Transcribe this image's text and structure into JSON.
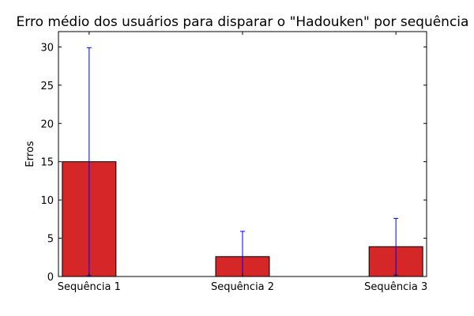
{
  "chart_data": {
    "type": "bar",
    "title": "Erro médio dos usuários para disparar o \"Hadouken\" por sequência",
    "xlabel": "",
    "ylabel": "Erros",
    "categories": [
      "Sequência 1",
      "Sequência 2",
      "Sequência 3"
    ],
    "values": [
      15.0,
      2.6,
      3.9
    ],
    "errors": [
      14.9,
      3.3,
      3.7
    ],
    "ylim": [
      0,
      32
    ],
    "yticks": [
      0,
      5,
      10,
      15,
      20,
      25,
      30
    ],
    "grid": false,
    "bar_color": "#d62728",
    "error_color": "#0000ff"
  }
}
